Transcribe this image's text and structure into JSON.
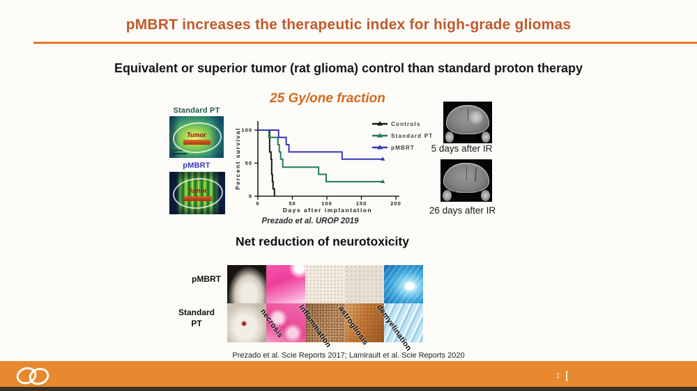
{
  "slide": {
    "title": "pMBRT increases the therapeutic index for high-grade gliomas",
    "subtitle": "Equivalent or superior tumor (rat glioma) control than standard proton therapy",
    "fraction_label": "25 Gy/one fraction",
    "chart_citation": "Prezado et al. UROP 2019",
    "bottom_citation": "Prezado et al. Scie Reports 2017;  Lamirault et al. Scie Reports 2020",
    "page_number": "1"
  },
  "dose_panel": {
    "standard_label": "Standard PT",
    "pmbrt_label": "pMBRT",
    "tumor_label": "Tumor"
  },
  "mri_panel": {
    "top_caption": "5 days after IR",
    "bottom_caption": "26 days after IR"
  },
  "neurotoxicity": {
    "heading": "Net reduction of neurotoxicity",
    "row_labels": [
      "pMBRT",
      "Standard PT"
    ],
    "column_labels": [
      "necrosis",
      "Inflammation",
      "astrogliosis",
      "demyelination"
    ]
  },
  "chart_data": {
    "type": "line",
    "subtype": "kaplan-meier-survival",
    "title": "25 Gy/one fraction",
    "xlabel": "Days after implantation",
    "ylabel": "Percent survival",
    "xlim": [
      0,
      200
    ],
    "ylim": [
      0,
      100
    ],
    "xticks": [
      0,
      50,
      100,
      150,
      200
    ],
    "yticks": [
      0,
      50,
      100
    ],
    "grid": false,
    "legend_position": "upper right",
    "series": [
      {
        "name": "Controls",
        "color": "#141414",
        "points": [
          [
            0,
            100
          ],
          [
            17,
            100
          ],
          [
            17,
            67
          ],
          [
            19,
            67
          ],
          [
            19,
            56
          ],
          [
            20,
            56
          ],
          [
            20,
            33
          ],
          [
            21,
            33
          ],
          [
            21,
            22
          ],
          [
            22,
            22
          ],
          [
            22,
            11
          ],
          [
            24,
            11
          ],
          [
            24,
            0
          ]
        ]
      },
      {
        "name": "Standard PT",
        "color": "#1E7B52",
        "points": [
          [
            0,
            100
          ],
          [
            16,
            100
          ],
          [
            16,
            89
          ],
          [
            29,
            89
          ],
          [
            29,
            78
          ],
          [
            31,
            78
          ],
          [
            31,
            67
          ],
          [
            33,
            67
          ],
          [
            33,
            56
          ],
          [
            36,
            56
          ],
          [
            36,
            44
          ],
          [
            88,
            44
          ],
          [
            88,
            33
          ],
          [
            99,
            33
          ],
          [
            99,
            22
          ],
          [
            181,
            22
          ]
        ]
      },
      {
        "name": "pMBRT",
        "color": "#3535B5",
        "points": [
          [
            0,
            100
          ],
          [
            30,
            100
          ],
          [
            30,
            89
          ],
          [
            41,
            89
          ],
          [
            41,
            78
          ],
          [
            45,
            78
          ],
          [
            45,
            67
          ],
          [
            122,
            67
          ],
          [
            122,
            56
          ],
          [
            181,
            56
          ]
        ]
      }
    ]
  },
  "colors": {
    "title": "#C05A2B",
    "divider": "#E87722",
    "fraction_text": "#D2691E",
    "footer": "#E8892F",
    "standard_pt_label": "#1D5C4B",
    "pmbrt_label": "#3939BB"
  }
}
